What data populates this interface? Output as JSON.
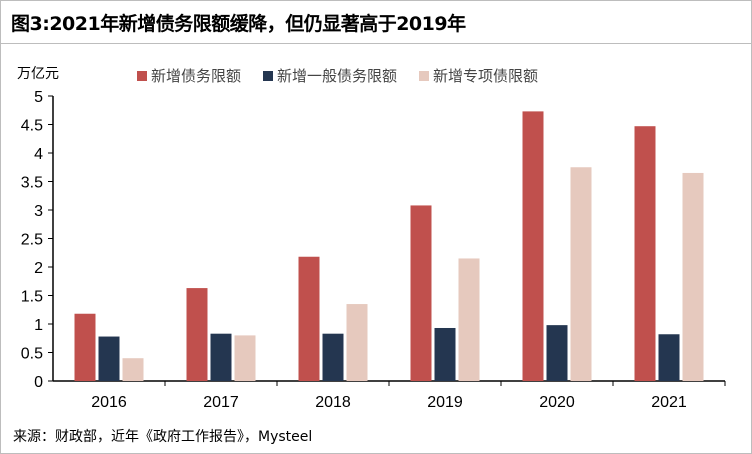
{
  "title": "图3:2021年新增债务限额缓降，但仍显著高于2019年",
  "source": "来源：财政部，近年《政府工作报告》，Mysteel",
  "chart_data": {
    "type": "bar",
    "ylabel": "万亿元",
    "categories": [
      "2016",
      "2017",
      "2018",
      "2019",
      "2020",
      "2021"
    ],
    "ylim": [
      0,
      5
    ],
    "yticks": [
      "0",
      "0.5",
      "1",
      "1.5",
      "2",
      "2.5",
      "3",
      "3.5",
      "4",
      "4.5",
      "5"
    ],
    "legend_position": "top",
    "grid": false,
    "series": [
      {
        "name": "新增债务限额",
        "color": "#c0504d",
        "values": [
          1.18,
          1.63,
          2.18,
          3.08,
          4.73,
          4.47
        ]
      },
      {
        "name": "新增一般债务限额",
        "color": "#243650",
        "values": [
          0.78,
          0.83,
          0.83,
          0.93,
          0.98,
          0.82
        ]
      },
      {
        "name": "新增专项债限额",
        "color": "#e6c9be",
        "values": [
          0.4,
          0.8,
          1.35,
          2.15,
          3.75,
          3.65
        ]
      }
    ]
  }
}
